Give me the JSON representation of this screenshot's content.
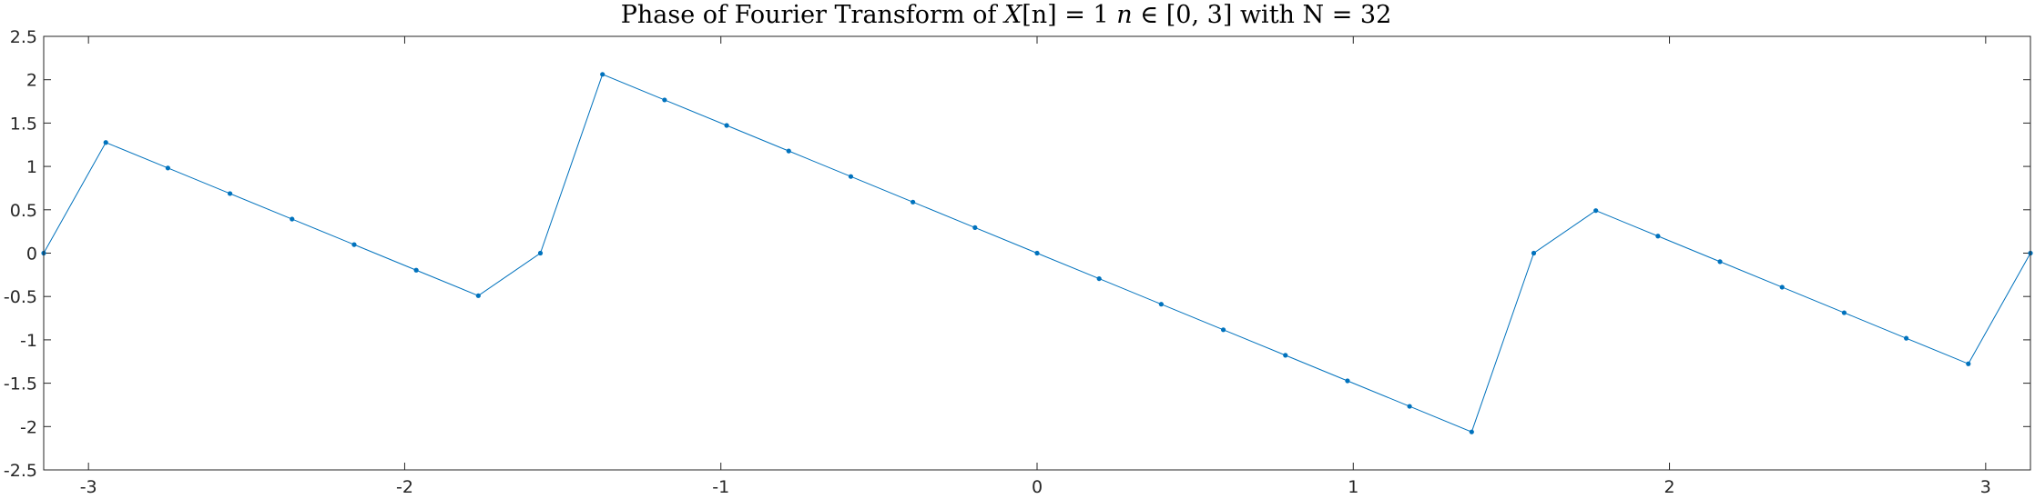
{
  "chart_data": {
    "type": "line",
    "title": {
      "prefix": "Phase of Fourier Transform of ",
      "math_x": "X",
      "math_n_bracket": "[n] = 1 ",
      "math_n": "n",
      "math_in": " ∈ [0, 3]",
      "suffix": " with N =  32"
    },
    "xlabel": "",
    "ylabel": "",
    "xlim": [
      -3.14159,
      3.14159
    ],
    "ylim": [
      -2.5,
      2.5
    ],
    "x_ticks": [
      -3,
      -2,
      -1,
      0,
      1,
      2,
      3
    ],
    "x_tick_labels": [
      "-3",
      "-2",
      "-1",
      "0",
      "1",
      "2",
      "3"
    ],
    "y_ticks": [
      -2.5,
      -2,
      -1.5,
      -1,
      -0.5,
      0,
      0.5,
      1,
      1.5,
      2,
      2.5
    ],
    "y_tick_labels": [
      "-2.5",
      "-2",
      "-1.5",
      "-1",
      "-0.5",
      "0",
      "0.5",
      "1",
      "1.5",
      "2",
      "2.5"
    ],
    "grid": false,
    "line_color": "#0072BD",
    "marker": "dot",
    "series": [
      {
        "x": [
          -3.1416,
          -2.9452,
          -2.7489,
          -2.5525,
          -2.3562,
          -2.1598,
          -1.9635,
          -1.7671,
          -1.5708,
          -1.3744,
          -1.1781,
          -0.9817,
          -0.7854,
          -0.589,
          -0.3927,
          -0.1963,
          0,
          0.1963,
          0.3927,
          0.589,
          0.7854,
          0.9817,
          1.1781,
          1.3744,
          1.5708,
          1.7671,
          1.9635,
          2.1598,
          2.3562,
          2.5525,
          2.7489,
          2.9452,
          3.1416
        ],
        "values": [
          0,
          1.2763,
          0.9817,
          0.6872,
          0.3927,
          0.0982,
          -0.1963,
          -0.4909,
          0,
          2.0617,
          1.7671,
          1.4726,
          1.1781,
          0.8836,
          0.589,
          0.2945,
          0,
          -0.2945,
          -0.589,
          -0.8836,
          -1.1781,
          -1.4726,
          -1.7671,
          -2.0617,
          0,
          0.4909,
          0.1963,
          -0.0982,
          -0.3927,
          -0.6872,
          -0.9817,
          -1.2763,
          0
        ]
      }
    ]
  }
}
